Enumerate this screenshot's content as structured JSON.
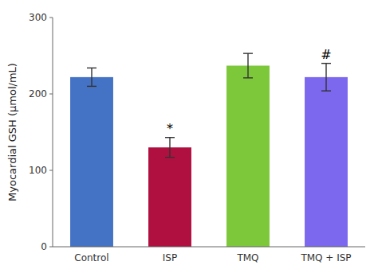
{
  "chart_data": {
    "type": "bar",
    "categories": [
      "Control",
      "ISP",
      "TMQ",
      "TMQ + ISP"
    ],
    "values": [
      222,
      130,
      237,
      222
    ],
    "errors": [
      12,
      13,
      16,
      18
    ],
    "colors": [
      "#4472C4",
      "#B01040",
      "#7DC83A",
      "#7B68EE"
    ],
    "ylabel": "Myocardial GSH (μmol/mL)",
    "ylim": [
      0,
      300
    ],
    "yticks": [
      0,
      100,
      200,
      300
    ],
    "grid": false,
    "annotations": [
      {
        "category": "ISP",
        "text": "*"
      },
      {
        "category": "TMQ + ISP",
        "text": "#"
      }
    ]
  }
}
